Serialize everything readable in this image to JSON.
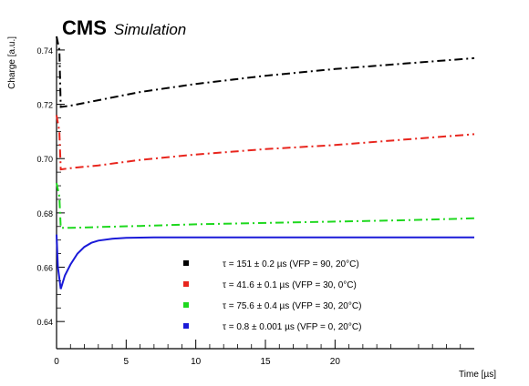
{
  "header": {
    "experiment": "CMS",
    "tag": "Simulation"
  },
  "chart_data": {
    "type": "line",
    "xlabel": "Time [µs]",
    "ylabel": "Charge [a.u.]",
    "xlim": [
      0,
      30
    ],
    "ylim": [
      0.63,
      0.745
    ],
    "xticks": [
      0,
      5,
      10,
      15,
      20
    ],
    "yticks": [
      0.64,
      0.66,
      0.68,
      0.7,
      0.72,
      0.74
    ],
    "ytick_labels": [
      "0.64",
      "0.66",
      "0.68",
      "0.70",
      "0.72",
      "0.74"
    ],
    "xtick_labels": [
      "0",
      "5",
      "10",
      "15",
      "20"
    ],
    "grid": false,
    "legend_position": "bottom-right",
    "series": [
      {
        "name": "τ = 151 ± 0.2 µs (VFP = 90, 20°C)",
        "color": "#000000",
        "dash": "dash-dot",
        "x": [
          0,
          0.2,
          0.3,
          1,
          3,
          6,
          10,
          15,
          20,
          25,
          30
        ],
        "y": [
          0.745,
          0.74,
          0.719,
          0.7195,
          0.7215,
          0.7245,
          0.7275,
          0.7305,
          0.733,
          0.735,
          0.737
        ]
      },
      {
        "name": "τ = 41.6 ± 0.1 µs (VFP = 30, 0°C)",
        "color": "#e8251d",
        "dash": "dash-dot",
        "x": [
          0,
          0.2,
          0.3,
          1,
          3,
          6,
          10,
          15,
          20,
          25,
          30
        ],
        "y": [
          0.716,
          0.71,
          0.696,
          0.6965,
          0.6975,
          0.6995,
          0.7015,
          0.7035,
          0.705,
          0.707,
          0.709
        ]
      },
      {
        "name": "τ = 75.6 ± 0.4 µs (VFP = 30, 20°C)",
        "color": "#1ed81e",
        "dash": "dash-dot",
        "x": [
          0,
          0.2,
          0.3,
          1,
          3,
          6,
          10,
          15,
          20,
          25,
          30
        ],
        "y": [
          0.691,
          0.686,
          0.6745,
          0.6745,
          0.6748,
          0.6752,
          0.6758,
          0.6763,
          0.6768,
          0.6773,
          0.678
        ]
      },
      {
        "name": "τ = 0.8 ± 0.001 µs (VFP = 0, 20°C)",
        "color": "#1a1ad8",
        "dash": "solid",
        "x": [
          0,
          0.1,
          0.3,
          0.6,
          1,
          1.5,
          2,
          2.5,
          3,
          4,
          5,
          7,
          10,
          15,
          20,
          25,
          30
        ],
        "y": [
          0.672,
          0.66,
          0.652,
          0.657,
          0.661,
          0.665,
          0.6675,
          0.669,
          0.6698,
          0.6705,
          0.6708,
          0.671,
          0.671,
          0.671,
          0.671,
          0.671,
          0.671
        ]
      }
    ]
  }
}
